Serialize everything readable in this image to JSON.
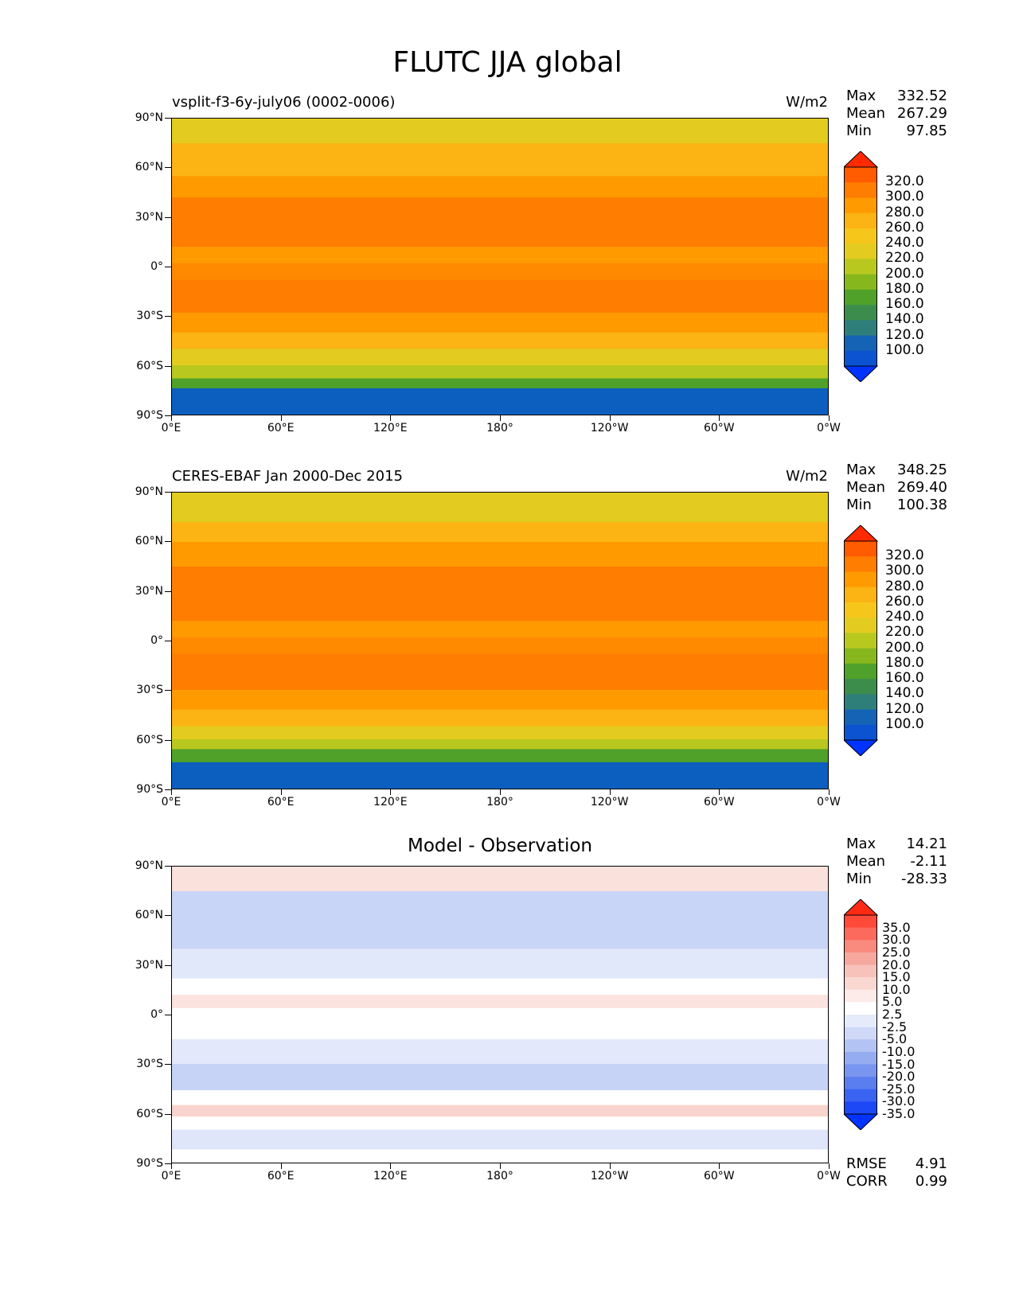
{
  "figure_title": "FLUTC JJA global",
  "panels": [
    {
      "left_title": "vsplit-f3-6y-july06 (0002-0006)",
      "center_title": "",
      "units": "W/m2",
      "stats": [
        {
          "label": "Max",
          "value": "332.52"
        },
        {
          "label": "Mean",
          "value": "267.29"
        },
        {
          "label": "Min",
          "value": "97.85"
        }
      ],
      "colorbar_labels": [
        "320.0",
        "300.0",
        "280.0",
        "260.0",
        "240.0",
        "220.0",
        "200.0",
        "180.0",
        "160.0",
        "140.0",
        "120.0",
        "100.0"
      ],
      "colorbar_colors": [
        "#ff2a00",
        "#ff5b00",
        "#ff7d00",
        "#ff9a00",
        "#fcb314",
        "#f7c61a",
        "#e3cc1f",
        "#b8c81f",
        "#86b81e",
        "#4fa12a",
        "#3c8c4c",
        "#2e7f7a",
        "#1463b4",
        "#0c53d2",
        "#0033ff"
      ],
      "map_bands": [
        {
          "lat_top": 90,
          "lat_bottom": 75,
          "color": "#e3cc1f"
        },
        {
          "lat_top": 75,
          "lat_bottom": 55,
          "color": "#fcb314"
        },
        {
          "lat_top": 55,
          "lat_bottom": 42,
          "color": "#ff9a00"
        },
        {
          "lat_top": 42,
          "lat_bottom": 12,
          "color": "#ff7d00"
        },
        {
          "lat_top": 12,
          "lat_bottom": 2,
          "color": "#ff9a00"
        },
        {
          "lat_top": 2,
          "lat_bottom": -8,
          "color": "#ff8a00"
        },
        {
          "lat_top": -8,
          "lat_bottom": -28,
          "color": "#ff7d00"
        },
        {
          "lat_top": -28,
          "lat_bottom": -40,
          "color": "#ff9a00"
        },
        {
          "lat_top": -40,
          "lat_bottom": -50,
          "color": "#fcb314"
        },
        {
          "lat_top": -50,
          "lat_bottom": -60,
          "color": "#e3cc1f"
        },
        {
          "lat_top": -60,
          "lat_bottom": -68,
          "color": "#b8c81f"
        },
        {
          "lat_top": -68,
          "lat_bottom": -74,
          "color": "#4fa12a"
        },
        {
          "lat_top": -74,
          "lat_bottom": -90,
          "color": "#0c5fbf"
        }
      ]
    },
    {
      "left_title": "CERES-EBAF Jan 2000-Dec 2015",
      "center_title": "",
      "units": "W/m2",
      "stats": [
        {
          "label": "Max",
          "value": "348.25"
        },
        {
          "label": "Mean",
          "value": "269.40"
        },
        {
          "label": "Min",
          "value": "100.38"
        }
      ],
      "colorbar_labels": [
        "320.0",
        "300.0",
        "280.0",
        "260.0",
        "240.0",
        "220.0",
        "200.0",
        "180.0",
        "160.0",
        "140.0",
        "120.0",
        "100.0"
      ],
      "colorbar_colors": [
        "#ff2a00",
        "#ff5b00",
        "#ff7d00",
        "#ff9a00",
        "#fcb314",
        "#f7c61a",
        "#e3cc1f",
        "#b8c81f",
        "#86b81e",
        "#4fa12a",
        "#3c8c4c",
        "#2e7f7a",
        "#1463b4",
        "#0c53d2",
        "#0033ff"
      ],
      "map_bands": [
        {
          "lat_top": 90,
          "lat_bottom": 72,
          "color": "#e3cc1f"
        },
        {
          "lat_top": 72,
          "lat_bottom": 60,
          "color": "#fcb314"
        },
        {
          "lat_top": 60,
          "lat_bottom": 45,
          "color": "#ff9a00"
        },
        {
          "lat_top": 45,
          "lat_bottom": 12,
          "color": "#ff7d00"
        },
        {
          "lat_top": 12,
          "lat_bottom": 2,
          "color": "#ff9a00"
        },
        {
          "lat_top": 2,
          "lat_bottom": -8,
          "color": "#ff8a00"
        },
        {
          "lat_top": -8,
          "lat_bottom": -30,
          "color": "#ff7d00"
        },
        {
          "lat_top": -30,
          "lat_bottom": -42,
          "color": "#ff9a00"
        },
        {
          "lat_top": -42,
          "lat_bottom": -52,
          "color": "#fcb314"
        },
        {
          "lat_top": -52,
          "lat_bottom": -60,
          "color": "#e3cc1f"
        },
        {
          "lat_top": -60,
          "lat_bottom": -66,
          "color": "#b8c81f"
        },
        {
          "lat_top": -66,
          "lat_bottom": -74,
          "color": "#4fa12a"
        },
        {
          "lat_top": -74,
          "lat_bottom": -90,
          "color": "#0c5fbf"
        }
      ]
    },
    {
      "left_title": "",
      "center_title": "Model - Observation",
      "units": "",
      "stats": [
        {
          "label": "Max",
          "value": "14.21"
        },
        {
          "label": "Mean",
          "value": "-2.11"
        },
        {
          "label": "Min",
          "value": "-28.33"
        }
      ],
      "extra_stats": [
        {
          "label": "RMSE",
          "value": "4.91"
        },
        {
          "label": "CORR",
          "value": "0.99"
        }
      ],
      "colorbar_labels": [
        "35.0",
        "30.0",
        "25.0",
        "20.0",
        "15.0",
        "10.0",
        "5.0",
        "2.5",
        "-2.5",
        "-5.0",
        "-10.0",
        "-15.0",
        "-20.0",
        "-25.0",
        "-30.0",
        "-35.0"
      ],
      "colorbar_colors": [
        "#ff2a14",
        "#ff4a3a",
        "#fb6a5c",
        "#f88a7e",
        "#f6a89e",
        "#f7c2ba",
        "#f9d8d2",
        "#fcebe8",
        "#ffffff",
        "#e6ebfb",
        "#cfd9f7",
        "#b3c4f4",
        "#95acf1",
        "#7895ef",
        "#5a7df0",
        "#3b63f2",
        "#1d48f6",
        "#0033ff"
      ],
      "map_bands": [
        {
          "lat_top": 90,
          "lat_bottom": 75,
          "color": "#fbe1dc"
        },
        {
          "lat_top": 75,
          "lat_bottom": 40,
          "color": "#c9d5f6"
        },
        {
          "lat_top": 40,
          "lat_bottom": 22,
          "color": "#e1e8fa"
        },
        {
          "lat_top": 22,
          "lat_bottom": 12,
          "color": "#ffffff"
        },
        {
          "lat_top": 12,
          "lat_bottom": 4,
          "color": "#fbe3df"
        },
        {
          "lat_top": 4,
          "lat_bottom": -15,
          "color": "#ffffff"
        },
        {
          "lat_top": -15,
          "lat_bottom": -30,
          "color": "#e3e9fa"
        },
        {
          "lat_top": -30,
          "lat_bottom": -46,
          "color": "#c7d3f6"
        },
        {
          "lat_top": -46,
          "lat_bottom": -55,
          "color": "#ffffff"
        },
        {
          "lat_top": -55,
          "lat_bottom": -62,
          "color": "#f9d3cd"
        },
        {
          "lat_top": -62,
          "lat_bottom": -70,
          "color": "#ffffff"
        },
        {
          "lat_top": -70,
          "lat_bottom": -82,
          "color": "#dfe6fa"
        },
        {
          "lat_top": -82,
          "lat_bottom": -90,
          "color": "#ffffff"
        }
      ]
    }
  ],
  "axes": {
    "y_ticks": [
      "90°N",
      "60°N",
      "30°N",
      "0°",
      "30°S",
      "60°S",
      "90°S"
    ],
    "x_ticks": [
      "0°E",
      "60°E",
      "120°E",
      "180°",
      "120°W",
      "60°W",
      "0°W"
    ],
    "lat_range": [
      -90,
      90
    ],
    "lon_range": [
      0,
      360
    ]
  },
  "chart_data": [
    {
      "type": "heatmap",
      "title": "vsplit-f3-6y-july06 (0002-0006)",
      "units": "W/m2",
      "x_ticks": [
        "0°E",
        "60°E",
        "120°E",
        "180°",
        "120°W",
        "60°W",
        "0°W"
      ],
      "y_ticks": [
        "90°N",
        "60°N",
        "30°N",
        "0°",
        "30°S",
        "60°S",
        "90°S"
      ],
      "color_levels": [
        100,
        120,
        140,
        160,
        180,
        200,
        220,
        240,
        260,
        280,
        300,
        320
      ],
      "stats": {
        "max": 332.52,
        "mean": 267.29,
        "min": 97.85
      }
    },
    {
      "type": "heatmap",
      "title": "CERES-EBAF Jan 2000-Dec 2015",
      "units": "W/m2",
      "x_ticks": [
        "0°E",
        "60°E",
        "120°E",
        "180°",
        "120°W",
        "60°W",
        "0°W"
      ],
      "y_ticks": [
        "90°N",
        "60°N",
        "30°N",
        "0°",
        "30°S",
        "60°S",
        "90°S"
      ],
      "color_levels": [
        100,
        120,
        140,
        160,
        180,
        200,
        220,
        240,
        260,
        280,
        300,
        320
      ],
      "stats": {
        "max": 348.25,
        "mean": 269.4,
        "min": 100.38
      }
    },
    {
      "type": "heatmap",
      "title": "Model - Observation",
      "x_ticks": [
        "0°E",
        "60°E",
        "120°E",
        "180°",
        "120°W",
        "60°W",
        "0°W"
      ],
      "y_ticks": [
        "90°N",
        "60°N",
        "30°N",
        "0°",
        "30°S",
        "60°S",
        "90°S"
      ],
      "color_levels": [
        -35,
        -30,
        -25,
        -20,
        -15,
        -10,
        -5,
        -2.5,
        2.5,
        5,
        10,
        15,
        20,
        25,
        30,
        35
      ],
      "stats": {
        "max": 14.21,
        "mean": -2.11,
        "min": -28.33,
        "rmse": 4.91,
        "corr": 0.99
      }
    }
  ]
}
